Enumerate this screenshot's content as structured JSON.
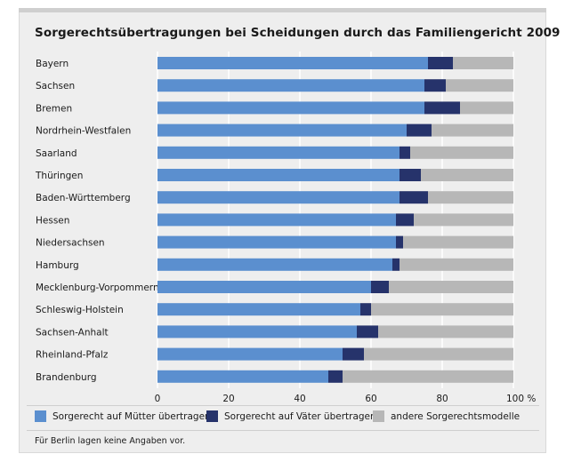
{
  "title": "Sorgerechtsübertragungen bei Scheidungen durch das Familiengericht 2009",
  "note": "Für Berlin lagen keine Angaben vor.",
  "colors": {
    "mothers": "#5b8fcf",
    "fathers": "#26336b",
    "other": "#b7b7b7",
    "grid": "#ffffff",
    "background": "#eeeeee"
  },
  "legend": [
    {
      "label": "Sorgerecht auf Mütter übertragen",
      "color": "#5b8fcf"
    },
    {
      "label": "Sorgerecht auf Väter übertragen",
      "color": "#26336b"
    },
    {
      "label": "andere Sorgerechtsmodelle",
      "color": "#b7b7b7"
    }
  ],
  "chart_data": {
    "type": "bar",
    "orientation": "horizontal",
    "stacked": true,
    "title": "Sorgerechtsübertragungen bei Scheidungen durch das Familiengericht 2009",
    "categories": [
      "Bayern",
      "Sachsen",
      "Bremen",
      "Nordrhein-Westfalen",
      "Saarland",
      "Thüringen",
      "Baden-Württemberg",
      "Hessen",
      "Niedersachsen",
      "Hamburg",
      "Mecklenburg-Vorpommern",
      "Schleswig-Holstein",
      "Sachsen-Anhalt",
      "Rheinland-Pfalz",
      "Brandenburg"
    ],
    "series": [
      {
        "name": "Sorgerecht auf Mütter übertragen",
        "values": [
          76,
          75,
          75,
          70,
          68,
          68,
          68,
          67,
          67,
          66,
          60,
          57,
          56,
          52,
          48
        ]
      },
      {
        "name": "Sorgerecht auf Väter übertragen",
        "values": [
          7,
          6,
          10,
          7,
          3,
          6,
          8,
          5,
          2,
          2,
          5,
          3,
          6,
          6,
          4
        ]
      },
      {
        "name": "andere Sorgerechtsmodelle",
        "values": [
          17,
          19,
          15,
          23,
          29,
          26,
          24,
          28,
          31,
          32,
          35,
          40,
          38,
          42,
          48
        ]
      }
    ],
    "xlim": [
      0,
      100
    ],
    "xticks": [
      "0",
      "20",
      "40",
      "60",
      "80",
      "100 %"
    ],
    "grid": true,
    "legend_position": "bottom"
  }
}
